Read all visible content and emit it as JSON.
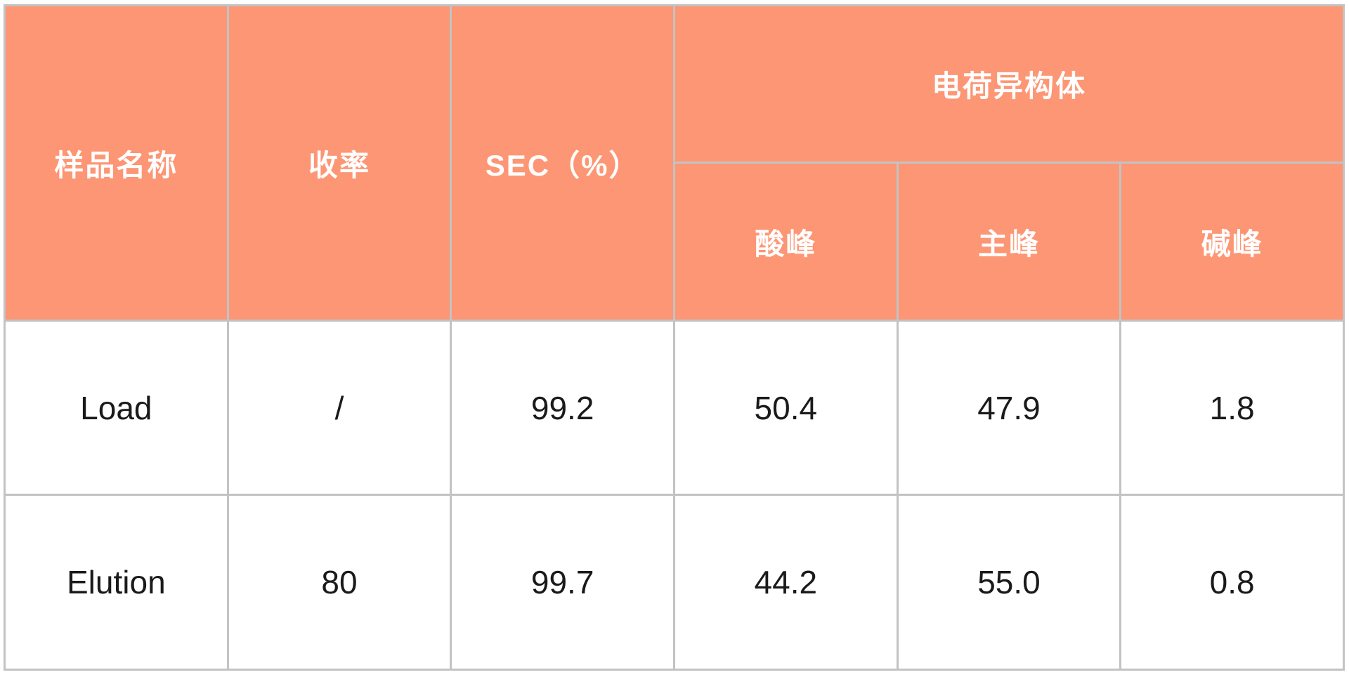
{
  "table": {
    "headers": {
      "sample_name": "样品名称",
      "yield": "收率",
      "sec_percent": "SEC（%）",
      "charge_variants_group": "电荷异构体",
      "acidic_peak": "酸峰",
      "main_peak": "主峰",
      "basic_peak": "碱峰"
    },
    "rows": [
      {
        "sample": "Load",
        "yield": "/",
        "sec": "99.2",
        "acidic_peak": "50.4",
        "main_peak": "47.9",
        "basic_peak": "1.8"
      },
      {
        "sample": "Elution",
        "yield": "80",
        "sec": "99.7",
        "acidic_peak": "44.2",
        "main_peak": "55.0",
        "basic_peak": "0.8"
      }
    ]
  },
  "colors": {
    "header_bg": "#fd9674",
    "header_text": "#ffffff",
    "body_bg": "#ffffff",
    "body_text": "#1a1a1a",
    "border_color": "#c3c3c3"
  }
}
